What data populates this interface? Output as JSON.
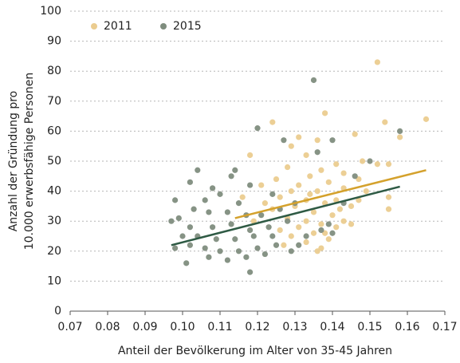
{
  "chart_data": {
    "type": "scatter",
    "xlabel": "Anteil der Bevölkerung im Alter von 35-45 Jahren",
    "ylabel": [
      "Anzahl der Gründung pro",
      "10.000 erwerbsfähige Personen"
    ],
    "xlim": [
      0.07,
      0.17
    ],
    "xticks": [
      0.07,
      0.08,
      0.09,
      {
        "value": 0.1,
        "label": "0.10"
      },
      0.11,
      0.12,
      0.13,
      0.14,
      0.15,
      0.16,
      0.17
    ],
    "ylim": [
      0,
      100
    ],
    "yticks": [
      0,
      10,
      20,
      30,
      40,
      50,
      60,
      70,
      80,
      90,
      100
    ],
    "grid": true,
    "legend": "top-left",
    "series": [
      {
        "name": "2011",
        "color": "#ebcc8f",
        "trend_color": "#d4a12c",
        "trend_x": [
          0.114,
          0.165
        ],
        "trend_y": [
          31,
          47
        ],
        "x": [
          0.152,
          0.165,
          0.154,
          0.138,
          0.124,
          0.131,
          0.136,
          0.146,
          0.158,
          0.129,
          0.133,
          0.118,
          0.148,
          0.152,
          0.155,
          0.141,
          0.128,
          0.137,
          0.143,
          0.134,
          0.125,
          0.147,
          0.139,
          0.131,
          0.121,
          0.143,
          0.129,
          0.136,
          0.149,
          0.155,
          0.126,
          0.133,
          0.141,
          0.138,
          0.13,
          0.145,
          0.155,
          0.124,
          0.135,
          0.14,
          0.128,
          0.133,
          0.143,
          0.119,
          0.137,
          0.131,
          0.126,
          0.141,
          0.135,
          0.129,
          0.139,
          0.133,
          0.137,
          0.136,
          0.127,
          0.145,
          0.116,
          0.122,
          0.134,
          0.142,
          0.138,
          0.147
        ],
        "values": [
          83,
          64,
          63,
          66,
          63,
          58,
          57,
          59,
          58,
          55,
          52,
          52,
          50,
          49,
          49,
          49,
          48,
          47,
          46,
          45,
          44,
          44,
          43,
          42,
          42,
          41,
          40,
          40,
          40,
          38,
          38,
          37,
          37,
          36,
          35,
          35,
          34,
          34,
          33,
          32,
          31,
          30,
          30,
          30,
          29,
          28,
          27,
          28,
          26,
          25,
          24,
          23,
          21,
          20,
          22,
          29,
          38,
          36,
          39,
          34,
          26,
          37
        ]
      },
      {
        "name": "2015",
        "color": "#7f8d7e",
        "trend_color": "#2e5a44",
        "trend_x": [
          0.097,
          0.158
        ],
        "trend_y": [
          22,
          41.5
        ],
        "x": [
          0.135,
          0.158,
          0.12,
          0.15,
          0.136,
          0.127,
          0.14,
          0.114,
          0.104,
          0.113,
          0.118,
          0.102,
          0.108,
          0.11,
          0.124,
          0.098,
          0.106,
          0.115,
          0.099,
          0.097,
          0.103,
          0.107,
          0.112,
          0.117,
          0.121,
          0.126,
          0.13,
          0.102,
          0.108,
          0.113,
          0.118,
          0.123,
          0.128,
          0.1,
          0.104,
          0.109,
          0.114,
          0.119,
          0.124,
          0.098,
          0.102,
          0.106,
          0.11,
          0.115,
          0.12,
          0.125,
          0.107,
          0.112,
          0.117,
          0.122,
          0.118,
          0.101,
          0.129,
          0.131,
          0.137,
          0.14,
          0.143,
          0.146,
          0.139,
          0.133
        ],
        "values": [
          77,
          60,
          61,
          50,
          53,
          57,
          57,
          47,
          47,
          45,
          42,
          43,
          41,
          39,
          39,
          37,
          37,
          36,
          31,
          30,
          34,
          33,
          33,
          32,
          32,
          34,
          36,
          28,
          28,
          29,
          27,
          28,
          30,
          25,
          25,
          24,
          24,
          25,
          25,
          21,
          22,
          21,
          20,
          20,
          21,
          22,
          18,
          17,
          18,
          19,
          13,
          16,
          20,
          22,
          27,
          26,
          36,
          45,
          29,
          25
        ]
      }
    ]
  }
}
